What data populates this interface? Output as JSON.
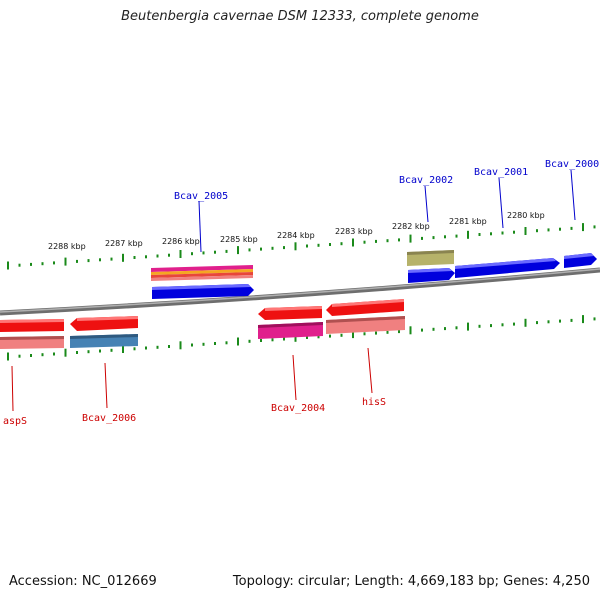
{
  "title": "Beutenbergia cavernae DSM 12333, complete genome",
  "footer": {
    "accession": "Accession: NC_012669",
    "summary": "Topology: circular; Length: 4,669,183 bp; Genes: 4,250"
  },
  "colors": {
    "backbone": "#808080",
    "tick": "#1a8a1a",
    "forward_label": "#0000cc",
    "reverse_label": "#cc0000",
    "scale_text": "#111111"
  },
  "scale_labels": [
    "2288 kbp",
    "2287 kbp",
    "2286 kbp",
    "2285 kbp",
    "2284 kbp",
    "2283 kbp",
    "2282 kbp",
    "2281 kbp",
    "2280 kbp"
  ],
  "gene_labels": {
    "forward": [
      "Bcav_2005",
      "Bcav_2002",
      "Bcav_2001",
      "Bcav_2000"
    ],
    "reverse": [
      "aspS",
      "Bcav_2006",
      "Bcav_2004",
      "hisS"
    ]
  }
}
